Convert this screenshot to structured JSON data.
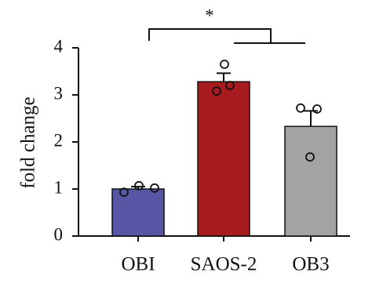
{
  "chart_data": {
    "type": "bar",
    "ylabel": "fold change",
    "categories": [
      "OBI",
      "SAOS-2",
      "OB3"
    ],
    "values": [
      1.0,
      3.28,
      2.33
    ],
    "errors": [
      0.05,
      0.18,
      0.33
    ],
    "points": [
      [
        0.93,
        1.07,
        1.02
      ],
      [
        3.65,
        3.08,
        3.2
      ],
      [
        2.72,
        2.7,
        1.68
      ]
    ],
    "colors": [
      "#5856a4",
      "#a71b1e",
      "#a3a3a3"
    ],
    "ylim": [
      0,
      4
    ],
    "yticks": [
      0,
      1,
      2,
      3,
      4
    ],
    "annotation": "*"
  }
}
